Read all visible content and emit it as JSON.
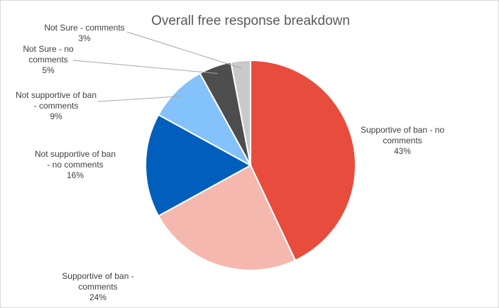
{
  "chart_data": {
    "type": "pie",
    "title": "Overall free response breakdown",
    "start_angle_deg": 0,
    "direction": "clockwise",
    "slices": [
      {
        "label": "Supportive of ban - no comments",
        "display_lines": [
          "Supportive of ban - no",
          "comments"
        ],
        "value": 43,
        "pct_label": "43%",
        "color": "#e84c3d"
      },
      {
        "label": "Supportive of ban - comments",
        "display_lines": [
          "Supportive of ban -",
          "comments"
        ],
        "value": 24,
        "pct_label": "24%",
        "color": "#f4b8ae"
      },
      {
        "label": "Not supportive of ban - no comments",
        "display_lines": [
          "Not supportive of ban",
          "- no comments"
        ],
        "value": 16,
        "pct_label": "16%",
        "color": "#005ebd"
      },
      {
        "label": "Not supportive of ban - comments",
        "display_lines": [
          "Not supportive of ban",
          "- comments"
        ],
        "value": 9,
        "pct_label": "9%",
        "color": "#83c2fa"
      },
      {
        "label": "Not Sure - no comments",
        "display_lines": [
          "Not Sure - no",
          "comments"
        ],
        "value": 5,
        "pct_label": "5%",
        "color": "#4d4d4d"
      },
      {
        "label": "Not Sure - comments",
        "display_lines": [
          "Not Sure - comments"
        ],
        "value": 3,
        "pct_label": "3%",
        "color": "#c9c9c9"
      }
    ]
  }
}
